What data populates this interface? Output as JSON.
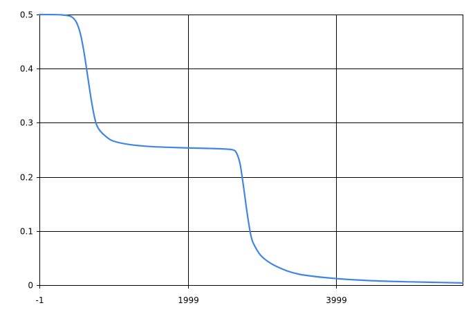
{
  "chart_data": {
    "type": "line",
    "title": "",
    "xlabel": "",
    "ylabel": "",
    "xlim": [
      -1,
      5699
    ],
    "ylim": [
      0,
      0.5
    ],
    "x_ticks": [
      {
        "value": -1,
        "label": "-1"
      },
      {
        "value": 1999,
        "label": "1999"
      },
      {
        "value": 3999,
        "label": "3999"
      }
    ],
    "y_ticks": [
      {
        "value": 0,
        "label": "0"
      },
      {
        "value": 0.1,
        "label": "0.1"
      },
      {
        "value": 0.2,
        "label": "0.2"
      },
      {
        "value": 0.3,
        "label": "0.3"
      },
      {
        "value": 0.4,
        "label": "0.4"
      },
      {
        "value": 0.5,
        "label": "0.5"
      }
    ],
    "grid": true,
    "legend": "none",
    "series": [
      {
        "color": "#3f86e4",
        "points": [
          [
            -1,
            0.5
          ],
          [
            200,
            0.4998
          ],
          [
            300,
            0.4994
          ],
          [
            400,
            0.4975
          ],
          [
            450,
            0.494
          ],
          [
            500,
            0.485
          ],
          [
            550,
            0.465
          ],
          [
            600,
            0.43
          ],
          [
            650,
            0.385
          ],
          [
            700,
            0.34
          ],
          [
            750,
            0.305
          ],
          [
            800,
            0.288
          ],
          [
            900,
            0.274
          ],
          [
            1000,
            0.266
          ],
          [
            1200,
            0.26
          ],
          [
            1500,
            0.256
          ],
          [
            1999,
            0.2535
          ],
          [
            2300,
            0.2525
          ],
          [
            2500,
            0.2515
          ],
          [
            2600,
            0.25
          ],
          [
            2650,
            0.245
          ],
          [
            2700,
            0.225
          ],
          [
            2750,
            0.18
          ],
          [
            2800,
            0.13
          ],
          [
            2850,
            0.09
          ],
          [
            2900,
            0.072
          ],
          [
            3000,
            0.052
          ],
          [
            3200,
            0.034
          ],
          [
            3500,
            0.02
          ],
          [
            3999,
            0.012
          ],
          [
            4500,
            0.008
          ],
          [
            5000,
            0.006
          ],
          [
            5699,
            0.004
          ]
        ]
      }
    ]
  }
}
